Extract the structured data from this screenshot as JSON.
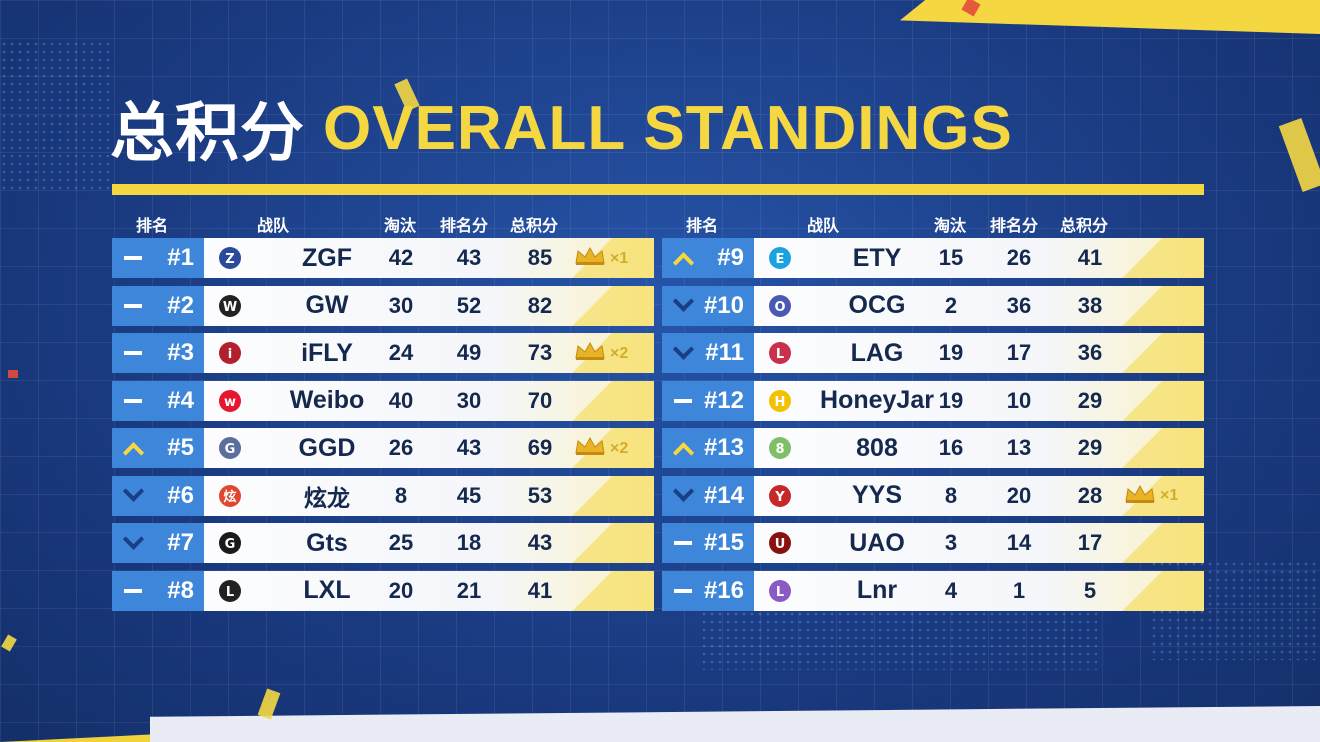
{
  "title": {
    "cn": "总积分",
    "en": "OVERALL STANDINGS"
  },
  "headers": {
    "rank": "排名",
    "team": "战队",
    "kills": "淘汰",
    "placement": "排名分",
    "total": "总积分"
  },
  "colors": {
    "accent": "#f5d742",
    "rank_bg": "#3e86da",
    "text_dark": "#15284e"
  },
  "left": [
    {
      "rank": "#1",
      "trend": "same",
      "team": "ZGF",
      "kills": "42",
      "placement": "43",
      "total": "85",
      "crown": "×1",
      "logo": "zgf-logo"
    },
    {
      "rank": "#2",
      "trend": "same",
      "team": "GW",
      "kills": "30",
      "placement": "52",
      "total": "82",
      "crown": "",
      "logo": "gw-logo"
    },
    {
      "rank": "#3",
      "trend": "same",
      "team": "iFLY",
      "kills": "24",
      "placement": "49",
      "total": "73",
      "crown": "×2",
      "logo": "ifly-logo"
    },
    {
      "rank": "#4",
      "trend": "same",
      "team": "Weibo",
      "kills": "40",
      "placement": "30",
      "total": "70",
      "crown": "",
      "logo": "weibo-logo"
    },
    {
      "rank": "#5",
      "trend": "up",
      "team": "GGD",
      "kills": "26",
      "placement": "43",
      "total": "69",
      "crown": "×2",
      "logo": "ggd-logo"
    },
    {
      "rank": "#6",
      "trend": "down",
      "team": "炫龙",
      "kills": "8",
      "placement": "45",
      "total": "53",
      "crown": "",
      "logo": "xuanlong-logo"
    },
    {
      "rank": "#7",
      "trend": "down",
      "team": "Gts",
      "kills": "25",
      "placement": "18",
      "total": "43",
      "crown": "",
      "logo": "gts-logo"
    },
    {
      "rank": "#8",
      "trend": "same",
      "team": "LXL",
      "kills": "20",
      "placement": "21",
      "total": "41",
      "crown": "",
      "logo": "lxl-logo"
    }
  ],
  "right": [
    {
      "rank": "#9",
      "trend": "up",
      "team": "ETY",
      "kills": "15",
      "placement": "26",
      "total": "41",
      "crown": "",
      "logo": "ety-logo"
    },
    {
      "rank": "#10",
      "trend": "down",
      "team": "OCG",
      "kills": "2",
      "placement": "36",
      "total": "38",
      "crown": "",
      "logo": "ocg-logo"
    },
    {
      "rank": "#11",
      "trend": "down",
      "team": "LAG",
      "kills": "19",
      "placement": "17",
      "total": "36",
      "crown": "",
      "logo": "lag-logo"
    },
    {
      "rank": "#12",
      "trend": "same",
      "team": "HoneyJar",
      "kills": "19",
      "placement": "10",
      "total": "29",
      "crown": "",
      "logo": "honeyjar-logo"
    },
    {
      "rank": "#13",
      "trend": "up",
      "team": "808",
      "kills": "16",
      "placement": "13",
      "total": "29",
      "crown": "",
      "logo": "808-logo"
    },
    {
      "rank": "#14",
      "trend": "down",
      "team": "YYS",
      "kills": "8",
      "placement": "20",
      "total": "28",
      "crown": "×1",
      "logo": "yys-logo"
    },
    {
      "rank": "#15",
      "trend": "same",
      "team": "UAO",
      "kills": "3",
      "placement": "14",
      "total": "17",
      "crown": "",
      "logo": "uao-logo"
    },
    {
      "rank": "#16",
      "trend": "same",
      "team": "Lnr",
      "kills": "4",
      "placement": "1",
      "total": "5",
      "crown": "",
      "logo": "lnr-logo"
    }
  ]
}
